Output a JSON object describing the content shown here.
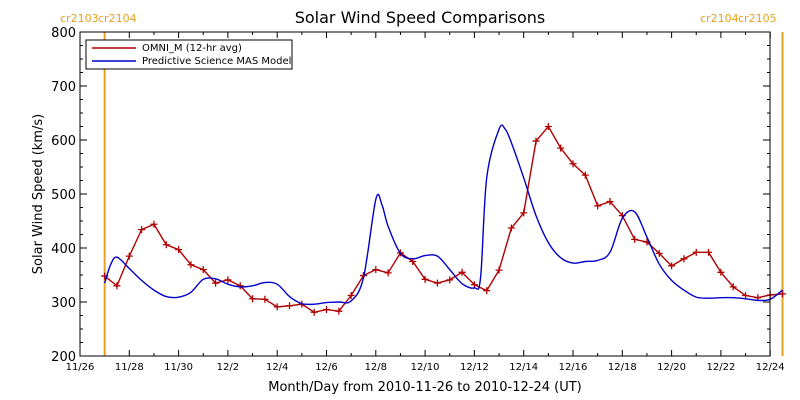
{
  "chart_data": {
    "type": "line",
    "title": "Solar Wind Speed Comparisons",
    "xlabel": "Month/Day from 2010-11-26 to 2010-12-24 (UT)",
    "ylabel": "Solar Wind Speed (km/s)",
    "xlim": [
      "2010-11-26",
      "2010-12-24"
    ],
    "ylim": [
      200,
      800
    ],
    "x_ticks": [
      {
        "date": "2010-11-26",
        "label": "11/26"
      },
      {
        "date": "2010-11-28",
        "label": "11/28"
      },
      {
        "date": "2010-11-30",
        "label": "11/30"
      },
      {
        "date": "2010-12-02",
        "label": "12/2"
      },
      {
        "date": "2010-12-04",
        "label": "12/4"
      },
      {
        "date": "2010-12-06",
        "label": "12/6"
      },
      {
        "date": "2010-12-08",
        "label": "12/8"
      },
      {
        "date": "2010-12-10",
        "label": "12/10"
      },
      {
        "date": "2010-12-12",
        "label": "12/12"
      },
      {
        "date": "2010-12-14",
        "label": "12/14"
      },
      {
        "date": "2010-12-16",
        "label": "12/16"
      },
      {
        "date": "2010-12-18",
        "label": "12/18"
      },
      {
        "date": "2010-12-20",
        "label": "12/20"
      },
      {
        "date": "2010-12-22",
        "label": "12/22"
      },
      {
        "date": "2010-12-24",
        "label": "12/24"
      }
    ],
    "y_ticks": [
      200,
      300,
      400,
      500,
      600,
      700,
      800
    ],
    "rotation_markers": [
      {
        "date": "2010-11-27 00:00",
        "left_label": "cr2103",
        "right_label": "cr2104"
      },
      {
        "date": "2010-12-24 12:00",
        "left_label": "cr2104",
        "right_label": "cr2105"
      }
    ],
    "legend_placement": "top-left",
    "series": [
      {
        "name": "OMNI_M (12-hr avg)",
        "color": "#b00000",
        "markers": "plus",
        "x": [
          "2010-11-27 00:00",
          "2010-11-27 12:00",
          "2010-11-28 00:00",
          "2010-11-28 12:00",
          "2010-11-29 00:00",
          "2010-11-29 12:00",
          "2010-11-30 00:00",
          "2010-11-30 12:00",
          "2010-12-01 00:00",
          "2010-12-01 12:00",
          "2010-12-02 00:00",
          "2010-12-02 12:00",
          "2010-12-03 00:00",
          "2010-12-03 12:00",
          "2010-12-04 00:00",
          "2010-12-04 12:00",
          "2010-12-05 00:00",
          "2010-12-05 12:00",
          "2010-12-06 00:00",
          "2010-12-06 12:00",
          "2010-12-07 00:00",
          "2010-12-07 12:00",
          "2010-12-08 00:00",
          "2010-12-08 12:00",
          "2010-12-09 00:00",
          "2010-12-09 12:00",
          "2010-12-10 00:00",
          "2010-12-10 12:00",
          "2010-12-11 00:00",
          "2010-12-11 12:00",
          "2010-12-12 00:00",
          "2010-12-12 12:00",
          "2010-12-13 00:00",
          "2010-12-13 12:00",
          "2010-12-14 00:00",
          "2010-12-14 12:00",
          "2010-12-15 00:00",
          "2010-12-15 12:00",
          "2010-12-16 00:00",
          "2010-12-16 12:00",
          "2010-12-17 00:00",
          "2010-12-17 12:00",
          "2010-12-18 00:00",
          "2010-12-18 12:00",
          "2010-12-19 00:00",
          "2010-12-19 12:00",
          "2010-12-20 00:00",
          "2010-12-20 12:00",
          "2010-12-21 00:00",
          "2010-12-21 12:00",
          "2010-12-22 00:00",
          "2010-12-22 12:00",
          "2010-12-23 00:00",
          "2010-12-23 12:00",
          "2010-12-24 00:00",
          "2010-12-24 12:00"
        ],
        "y": [
          348,
          330,
          385,
          434,
          444,
          406,
          397,
          369,
          360,
          335,
          341,
          330,
          306,
          305,
          291,
          293,
          296,
          281,
          286,
          283,
          312,
          349,
          360,
          354,
          391,
          375,
          342,
          335,
          341,
          355,
          332,
          321,
          359,
          437,
          465,
          598,
          625,
          585,
          556,
          535,
          478,
          486,
          460,
          416,
          411,
          390,
          367,
          380,
          392,
          392,
          355,
          328,
          312,
          308,
          313,
          315
        ]
      },
      {
        "name": "Predictive Science MAS Model",
        "color": "#0000c8",
        "markers": "none",
        "x": [
          "2010-11-27 00:00",
          "2010-11-27 06:00",
          "2010-11-27 12:00",
          "2010-11-28 00:00",
          "2010-11-28 12:00",
          "2010-11-29 00:00",
          "2010-11-29 12:00",
          "2010-11-30 00:00",
          "2010-11-30 12:00",
          "2010-12-01 00:00",
          "2010-12-01 12:00",
          "2010-12-02 00:00",
          "2010-12-02 12:00",
          "2010-12-03 00:00",
          "2010-12-03 12:00",
          "2010-12-04 00:00",
          "2010-12-04 12:00",
          "2010-12-05 00:00",
          "2010-12-05 12:00",
          "2010-12-06 00:00",
          "2010-12-06 12:00",
          "2010-12-07 00:00",
          "2010-12-07 12:00",
          "2010-12-08 00:00",
          "2010-12-08 06:00",
          "2010-12-08 12:00",
          "2010-12-09 00:00",
          "2010-12-09 12:00",
          "2010-12-10 00:00",
          "2010-12-10 12:00",
          "2010-12-11 00:00",
          "2010-12-11 12:00",
          "2010-12-12 00:00",
          "2010-12-12 06:00",
          "2010-12-12 12:00",
          "2010-12-13 00:00",
          "2010-12-13 06:00",
          "2010-12-13 12:00",
          "2010-12-14 00:00",
          "2010-12-14 12:00",
          "2010-12-15 00:00",
          "2010-12-15 12:00",
          "2010-12-16 00:00",
          "2010-12-16 12:00",
          "2010-12-17 00:00",
          "2010-12-17 12:00",
          "2010-12-18 00:00",
          "2010-12-18 12:00",
          "2010-12-19 00:00",
          "2010-12-19 12:00",
          "2010-12-20 00:00",
          "2010-12-20 12:00",
          "2010-12-21 00:00",
          "2010-12-21 12:00",
          "2010-12-22 00:00",
          "2010-12-22 12:00",
          "2010-12-23 00:00",
          "2010-12-23 12:00",
          "2010-12-24 00:00",
          "2010-12-24 12:00"
        ],
        "y": [
          335,
          370,
          383,
          362,
          340,
          322,
          310,
          309,
          318,
          342,
          343,
          333,
          328,
          330,
          336,
          333,
          310,
          297,
          296,
          299,
          300,
          302,
          345,
          490,
          480,
          440,
          390,
          380,
          386,
          385,
          360,
          334,
          326,
          345,
          530,
          620,
          620,
          595,
          530,
          460,
          410,
          382,
          372,
          375,
          377,
          392,
          455,
          467,
          420,
          370,
          340,
          322,
          309,
          307,
          308,
          308,
          306,
          303,
          305,
          322
        ]
      }
    ]
  }
}
